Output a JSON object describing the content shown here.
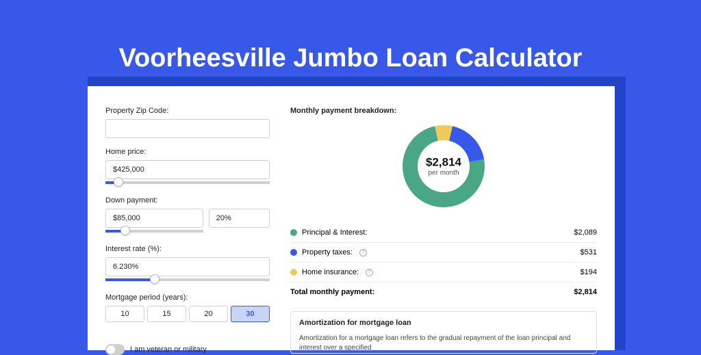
{
  "title": "Voorheesville Jumbo Loan Calculator",
  "colors": {
    "page_bg": "#3858e9",
    "shadow": "#2244c8",
    "card_bg": "#ffffff",
    "accent": "#3858e9",
    "text": "#222222",
    "principal": "#4aa785",
    "taxes": "#3858e9",
    "insurance": "#f0c95c"
  },
  "form": {
    "zip_label": "Property Zip Code:",
    "zip_value": "",
    "home_label": "Home price:",
    "home_value": "$425,000",
    "home_slider_pct": 8,
    "down_label": "Down payment:",
    "down_value": "$85,000",
    "down_pct_value": "20%",
    "down_slider_pct": 20,
    "rate_label": "Interest rate (%):",
    "rate_value": "6.230%",
    "rate_slider_pct": 30,
    "period_label": "Mortgage period (years):",
    "periods": [
      "10",
      "15",
      "20",
      "30"
    ],
    "period_selected_index": 3,
    "vet_label": "I am veteran or military"
  },
  "breakdown": {
    "heading": "Monthly payment breakdown:",
    "donut": {
      "type": "donut",
      "size": 130,
      "thickness": 22,
      "center_amount": "$2,814",
      "center_sub": "per month",
      "segments": [
        {
          "name": "principal",
          "value": 2089,
          "pct": 74.2,
          "color": "#4aa785"
        },
        {
          "name": "taxes",
          "value": 531,
          "pct": 18.9,
          "color": "#3858e9"
        },
        {
          "name": "insurance",
          "value": 194,
          "pct": 6.9,
          "color": "#f0c95c"
        }
      ]
    },
    "rows": [
      {
        "label": "Principal & Interest:",
        "value": "$2,089",
        "color": "#4aa785",
        "info": false
      },
      {
        "label": "Property taxes:",
        "value": "$531",
        "color": "#3858e9",
        "info": true
      },
      {
        "label": "Home insurance:",
        "value": "$194",
        "color": "#f0c95c",
        "info": true
      }
    ],
    "total_label": "Total monthly payment:",
    "total_value": "$2,814"
  },
  "amort": {
    "title": "Amortization for mortgage loan",
    "body": "Amortization for a mortgage loan refers to the gradual repayment of the loan principal and interest over a specified"
  }
}
